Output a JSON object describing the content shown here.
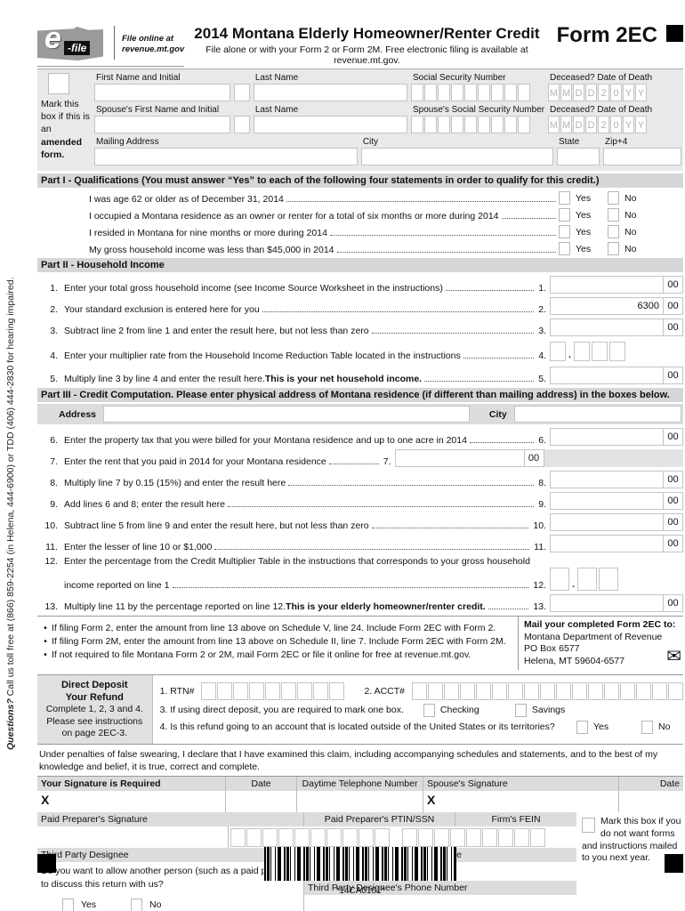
{
  "header": {
    "efile_e": "e",
    "efile_file": "-file",
    "file_online_1": "File online at",
    "file_online_2": "revenue.mt.gov",
    "title": "2014 Montana Elderly Homeowner/Renter Credit",
    "subtitle": "File alone or with your Form 2 or Form 2M. Free electronic filing is available at revenue.mt.gov.",
    "form_number": "Form 2EC"
  },
  "sidebar": {
    "q": "Questions?",
    "rest": " Call us toll free at (866) 859-2254 (in Helena, 444-6900) or TDD (406) 444-2830 for hearing impaired."
  },
  "identity": {
    "amend_pre": "Mark this box if this is an ",
    "amend_bold": "amended form.",
    "first_name": "First Name and Initial",
    "last_name": "Last Name",
    "ssn": "Social Security Number",
    "deceased": "Deceased? Date of Death",
    "spouse_first_name": "Spouse's First Name and Initial",
    "spouse_last_name": "Last Name",
    "spouse_ssn": "Spouse's Social Security Number",
    "spouse_deceased": "Deceased? Date of Death",
    "mailing_address": "Mailing Address",
    "city": "City",
    "state": "State",
    "zip": "Zip+4",
    "date_chars": "MMDD20YY"
  },
  "part1": {
    "header": "Part I - Qualifications (You must answer “Yes” to each of the following four statements in order to qualify for this credit.)",
    "yes": "Yes",
    "no": "No",
    "statements": [
      "I was age 62 or older as of December 31, 2014",
      "I occupied a Montana residence as an owner or renter for a total of six months or more during 2014",
      "I resided in Montana for nine months or more during 2014",
      "My gross household income was less than $45,000 in 2014"
    ]
  },
  "part2": {
    "header": "Part II - Household Income",
    "lines": [
      {
        "no": "1.",
        "text": "Enter your total gross household income (see Income Source Worksheet in the instructions)",
        "value": "",
        "cents": "00"
      },
      {
        "no": "2.",
        "text": "Your standard exclusion is entered here for you",
        "value": "6300",
        "cents": "00"
      },
      {
        "no": "3.",
        "text": "Subtract line 2 from line 1 and enter the result here, but not less than zero",
        "value": "",
        "cents": "00"
      },
      {
        "no": "4.",
        "text": "Enter your multiplier rate from the Household Income Reduction Table located in the instructions",
        "value": "",
        "cents": ""
      },
      {
        "no": "5.",
        "text": "Multiply line 3 by line 4 and enter the result here. ",
        "bold": "This is your net household income.",
        "value": "",
        "cents": "00"
      }
    ]
  },
  "part3": {
    "header": "Part III - Credit Computation. Please enter physical address of Montana residence (if different than mailing address) in the boxes below.",
    "address_label": "Address",
    "city_label": "City",
    "lines": [
      {
        "no": "6.",
        "text": "Enter the property tax that you were billed for your Montana residence and up to one acre in 2014",
        "value": "",
        "cents": "00"
      },
      {
        "no": "7.",
        "text": "Enter the rent that you paid in 2014 for your Montana residence",
        "value": "",
        "cents": "00"
      },
      {
        "no": "8.",
        "text": "Multiply line 7 by 0.15 (15%) and enter the result here",
        "value": "",
        "cents": "00"
      },
      {
        "no": "9.",
        "text": "Add lines 6 and 8; enter the result here",
        "value": "",
        "cents": "00"
      },
      {
        "no": "10.",
        "text": "Subtract line 5 from line 9 and enter the result here, but not less than zero",
        "value": "",
        "cents": "00"
      },
      {
        "no": "11.",
        "text": "Enter the lesser of line 10 or $1,000",
        "value": "",
        "cents": "00"
      },
      {
        "no": "12.",
        "text": "Enter the percentage from the Credit Multiplier Table in the instructions that corresponds to your gross household",
        "text2": "income reported on line 1",
        "value": "",
        "cents": ""
      },
      {
        "no": "13.",
        "text": "Multiply line 11 by the percentage reported on line 12. ",
        "bold": "This is your elderly homeowner/renter credit.",
        "value": "",
        "cents": "00"
      }
    ]
  },
  "filing_notes": [
    "If filing Form 2, enter the amount from line 13 above on Schedule V, line 24. Include Form 2EC with Form 2.",
    "If filing Form 2M, enter the amount from line 13 above on Schedule II, line 7. Include Form 2EC with Form 2M.",
    "If not required to file Montana Form 2 or 2M, mail Form 2EC or file it online for free at revenue.mt.gov."
  ],
  "mailbox": {
    "heading": "Mail your completed Form 2EC to:",
    "line1": "Montana Department of Revenue",
    "line2": "PO Box 6577",
    "line3": "Helena, MT 59604-6577"
  },
  "direct_deposit": {
    "title1": "Direct Deposit",
    "title2": "Your Refund",
    "note": "Complete 1, 2, 3 and 4. Please see instructions on page 2EC-3.",
    "rtn_label": "1. RTN#",
    "acct_label": "2. ACCT#",
    "line3": "3. If using direct deposit, you are required to mark one box.",
    "checking": "Checking",
    "savings": "Savings",
    "line4": "4. Is this refund going to an account that is located outside of the United States or its territories?",
    "yes": "Yes",
    "no": "No"
  },
  "declaration": "Under penalties of false swearing, I declare that I have examined this claim, including accompanying schedules and statements, and to the best of my knowledge and belief, it is true, correct and complete.",
  "signature": {
    "your_sig": "Your Signature is Required",
    "date": "Date",
    "daytime_phone": "Daytime Telephone Number",
    "spouse_sig": "Spouse's Signature",
    "date2": "Date",
    "x1": "X",
    "x2": "X",
    "preparer_sig": "Paid Preparer's Signature",
    "ptin": "Paid Preparer's PTIN/SSN",
    "fein": "Firm's FEIN",
    "third_party": "Third Party Designee",
    "printed_name": "Third Party Designee's Printed Name",
    "phone_label": "Third Party Designee's Phone Number",
    "question": "Do you want to allow another person (such as a paid preparer) to discuss this return with us?",
    "yes": "Yes",
    "no": "No",
    "mark_note": "Mark this box if you do not want forms and instructions mailed to you next year."
  },
  "footer": {
    "barcode_text": "*14CA0101*"
  }
}
